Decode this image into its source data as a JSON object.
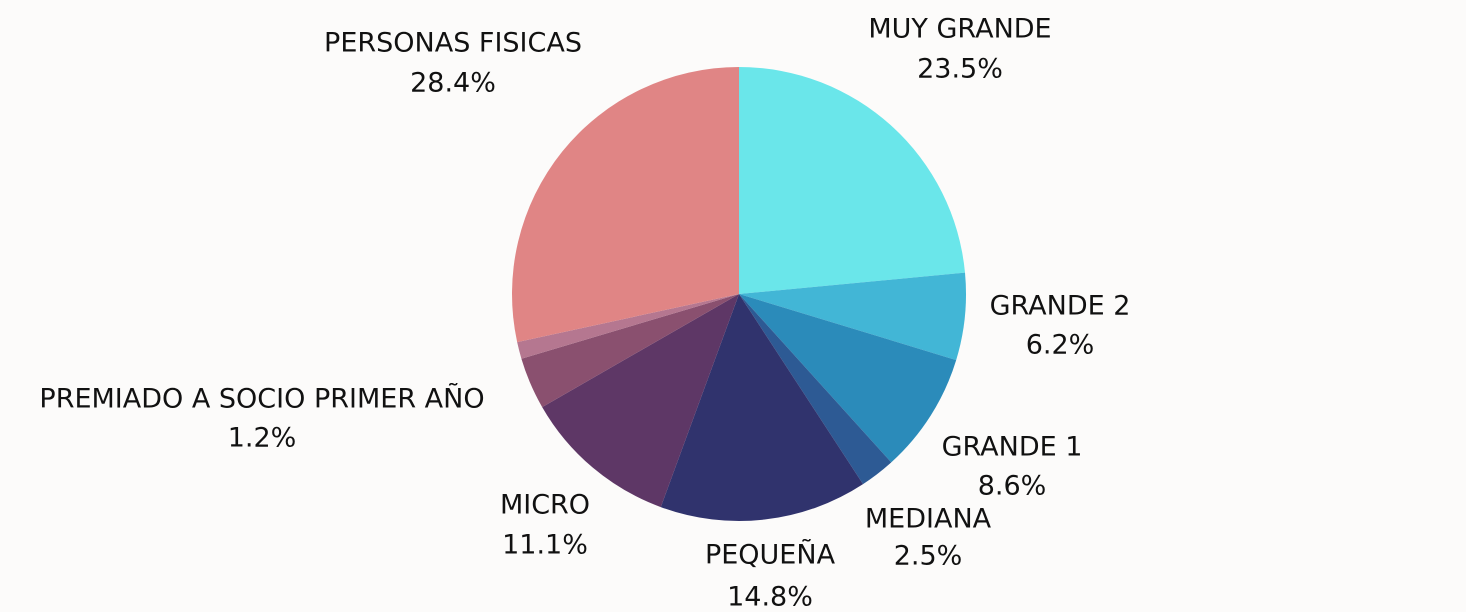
{
  "chart_data": {
    "type": "pie",
    "categories": [
      "MUY GRANDE",
      "GRANDE 2",
      "GRANDE 1",
      "MEDIANA",
      "PEQUEÑA",
      "MICRO",
      null,
      "PREMIADO A SOCIO PRIMER AÑO",
      "PERSONAS FISICAS"
    ],
    "values": [
      23.5,
      6.2,
      8.6,
      2.5,
      14.8,
      11.1,
      3.7,
      1.2,
      28.4
    ],
    "value_labels": [
      "23.5%",
      "6.2%",
      "8.6%",
      "2.5%",
      "14.8%",
      "11.1%",
      null,
      "1.2%",
      "28.4%"
    ],
    "colors": [
      "#6ae6ea",
      "#42b6d6",
      "#2b8bba",
      "#2d5a94",
      "#30336d",
      "#5e3766",
      "#8a506f",
      "#b57790",
      "#e08585"
    ]
  }
}
